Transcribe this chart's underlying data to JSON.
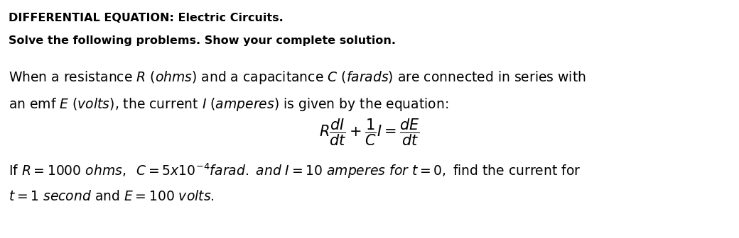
{
  "background_color": "#ffffff",
  "title_text": "DIFFERENTIAL EQUATION: Electric Circuits.",
  "subtitle_text": "Solve the following problems. Show your complete solution.",
  "para1_line1": "When a resistance $R$ $(ohms)$ and a capacitance $C$ $(farads)$ are connected in series with",
  "para1_line2": "an emf $E$ $(volts)$, the current $I$ $(amperes)$ is given by the equation:",
  "equation": "$R\\dfrac{dI}{dt} + \\dfrac{1}{C}I = \\dfrac{dE}{dt}$",
  "para2_line1": "If $R = 1000$ $ohms,$ $\\;C = 5x10^{-4}$$farad.$ $and$ $I = 10$ $amperes$ $for$ $t = 0,$ find the current for",
  "para2_line2": "$t = 1$ $second$ and $E = 100$ $volts.$",
  "title_fontsize": 11.5,
  "subtitle_fontsize": 11.5,
  "body_fontsize": 13.5,
  "equation_fontsize": 15,
  "fig_width": 10.4,
  "fig_height": 3.36,
  "dpi": 100
}
